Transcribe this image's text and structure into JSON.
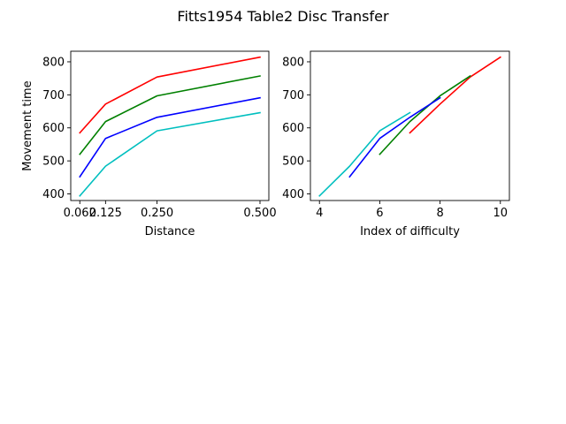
{
  "figure": {
    "title": "Fitts1954 Table2 Disc Transfer"
  },
  "chart_data": [
    {
      "type": "line",
      "xlabel": "Distance",
      "ylabel": "Movement time",
      "xlim": [
        0.0405,
        0.5215
      ],
      "ylim": [
        380,
        832
      ],
      "xticks": [
        0.0625,
        0.125,
        0.25,
        0.5
      ],
      "xtick_labels": [
        "0.062",
        "0.125",
        "0.250",
        "0.500"
      ],
      "yticks": [
        400,
        500,
        600,
        700,
        800
      ],
      "ytick_labels": [
        "400",
        "500",
        "600",
        "700",
        "800"
      ],
      "series": [
        {
          "color": "#ff0000",
          "x": [
            0.0625,
            0.125,
            0.25,
            0.5
          ],
          "y": [
            585,
            672,
            754,
            814
          ]
        },
        {
          "color": "#008000",
          "x": [
            0.0625,
            0.125,
            0.25,
            0.5
          ],
          "y": [
            520,
            619,
            697,
            757
          ]
        },
        {
          "color": "#0000ff",
          "x": [
            0.0625,
            0.125,
            0.25,
            0.5
          ],
          "y": [
            452,
            568,
            632,
            691
          ]
        },
        {
          "color": "#00bfbf",
          "x": [
            0.0625,
            0.125,
            0.25,
            0.5
          ],
          "y": [
            394,
            484,
            591,
            646
          ]
        }
      ]
    },
    {
      "type": "line",
      "xlabel": "Index of difficulty",
      "ylabel": "",
      "xlim": [
        3.7,
        10.3
      ],
      "ylim": [
        380,
        832
      ],
      "xticks": [
        4,
        6,
        8,
        10
      ],
      "xtick_labels": [
        "4",
        "6",
        "8",
        "10"
      ],
      "yticks": [
        400,
        500,
        600,
        700,
        800
      ],
      "ytick_labels": [
        "400",
        "500",
        "600",
        "700",
        "800"
      ],
      "series": [
        {
          "color": "#ff0000",
          "x": [
            7,
            8,
            9,
            10
          ],
          "y": [
            585,
            672,
            754,
            814
          ]
        },
        {
          "color": "#008000",
          "x": [
            6,
            7,
            8,
            9
          ],
          "y": [
            520,
            619,
            697,
            757
          ]
        },
        {
          "color": "#0000ff",
          "x": [
            5,
            6,
            7,
            8
          ],
          "y": [
            452,
            568,
            632,
            691
          ]
        },
        {
          "color": "#00bfbf",
          "x": [
            4,
            5,
            6,
            7
          ],
          "y": [
            394,
            484,
            591,
            646
          ]
        }
      ]
    }
  ]
}
